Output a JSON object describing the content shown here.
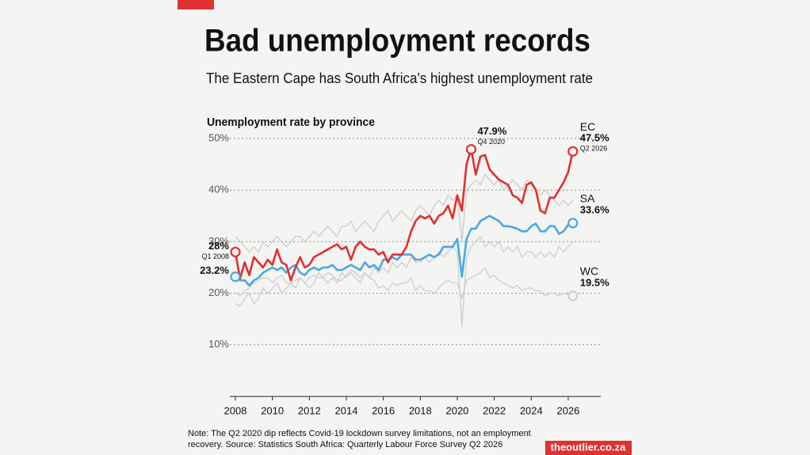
{
  "chart_data": {
    "type": "line",
    "title": "Bad unemployment records",
    "subtitle": "The Eastern Cape has South Africa's highest unemployment rate",
    "chart_title": "Unemployment rate by province",
    "note": [
      "Note: The Q2 2020 dip reflects Covid-19 lockdown survey limitations, not an employment",
      "recovery. Source: Statistics South Africa: Quarterly Labour Force Survey Q2 2026"
    ],
    "source_brand": "theoutlier.co.za",
    "x": [
      2008,
      2008.25,
      2008.5,
      2008.75,
      2009,
      2009.25,
      2009.5,
      2009.75,
      2010,
      2010.25,
      2010.5,
      2010.75,
      2011,
      2011.25,
      2011.5,
      2011.75,
      2012,
      2012.25,
      2012.5,
      2012.75,
      2013,
      2013.25,
      2013.5,
      2013.75,
      2014,
      2014.25,
      2014.5,
      2014.75,
      2015,
      2015.25,
      2015.5,
      2015.75,
      2016,
      2016.25,
      2016.5,
      2016.75,
      2017,
      2017.25,
      2017.5,
      2017.75,
      2018,
      2018.25,
      2018.5,
      2018.75,
      2019,
      2019.25,
      2019.5,
      2019.75,
      2020,
      2020.25,
      2020.5,
      2020.75,
      2021,
      2021.25,
      2021.5,
      2021.75,
      2022,
      2022.25,
      2022.5,
      2022.75,
      2023,
      2023.25,
      2023.5,
      2023.75,
      2024,
      2024.25,
      2024.5,
      2024.75,
      2025,
      2025.25,
      2025.5,
      2025.75,
      2026,
      2026.25
    ],
    "series": [
      {
        "color": "#cfcfcf",
        "values": [
          31,
          30,
          29,
          28,
          29,
          28,
          30,
          29,
          30,
          31,
          30,
          29,
          30,
          31,
          31,
          30,
          31,
          32,
          31,
          32,
          33,
          32,
          31,
          33,
          33,
          34,
          32,
          33,
          34,
          33,
          32,
          34,
          35,
          36,
          34,
          35,
          36,
          35,
          34,
          36,
          37,
          36,
          35,
          37,
          38,
          37,
          39,
          38,
          39,
          30,
          40,
          41,
          42,
          41,
          43,
          42,
          41,
          42,
          40,
          41,
          42,
          41,
          40,
          42,
          41,
          40,
          39,
          40,
          39,
          38,
          37,
          38,
          37,
          38
        ]
      },
      {
        "color": "#cfcfcf",
        "values": [
          18,
          17.5,
          19,
          20,
          18,
          19,
          21,
          20,
          21,
          22,
          20,
          21,
          22,
          21,
          23,
          22,
          21,
          22,
          24,
          23,
          22,
          23,
          22,
          24,
          23,
          24,
          23,
          22,
          24,
          23,
          25,
          24,
          25,
          24,
          26,
          25,
          26,
          25,
          27,
          26,
          26,
          27,
          26,
          27,
          28,
          27,
          28,
          29,
          28,
          13.5,
          27,
          29,
          30,
          31,
          29,
          30,
          29,
          30,
          28,
          29,
          28,
          29,
          27,
          28,
          28,
          27,
          28,
          27,
          28,
          27,
          29,
          28,
          29,
          30
        ]
      },
      {
        "name": "WC",
        "color": "#cfcfcf",
        "values": [
          20,
          19.5,
          20.5,
          21,
          22,
          22.5,
          23,
          23,
          22,
          23,
          23.5,
          22,
          22,
          22.5,
          23,
          22,
          23,
          23.5,
          23,
          23,
          24,
          23.5,
          22.5,
          22.5,
          23.5,
          24.5,
          24,
          23,
          24,
          23,
          22.5,
          21,
          21.5,
          20.5,
          22,
          21.5,
          22,
          22,
          23,
          20.5,
          21.5,
          20.5,
          20.5,
          20,
          21,
          22,
          22.5,
          22,
          22,
          19,
          22.5,
          23,
          23.5,
          24,
          25,
          23,
          23.5,
          22.5,
          22,
          21.5,
          21,
          21.5,
          20.5,
          21,
          21,
          20.5,
          20.5,
          19.5,
          20,
          20,
          19.5,
          20,
          19.8,
          19.5
        ]
      },
      {
        "name": "SA",
        "color": "#4aa8e0",
        "values": [
          23.2,
          22.5,
          22.5,
          21.5,
          22.5,
          23,
          24,
          24.5,
          25,
          24.5,
          25,
          24,
          25,
          25.5,
          24,
          23.5,
          24.5,
          25,
          24.5,
          25,
          25,
          25.5,
          24.5,
          24.5,
          25,
          25.5,
          25,
          24.5,
          26,
          25,
          25.5,
          24.5,
          26.5,
          26.5,
          27,
          26.5,
          27.5,
          27.5,
          27.5,
          26.5,
          26.5,
          27,
          27.5,
          27,
          27.5,
          29,
          29,
          29,
          30.5,
          23.2,
          30.5,
          32.5,
          32.5,
          34,
          34.5,
          35,
          34.5,
          34,
          33,
          33,
          32.8,
          32.5,
          32,
          32,
          33,
          33.5,
          32,
          32,
          33,
          33,
          31.5,
          32,
          33.3,
          33.6
        ]
      },
      {
        "name": "EC",
        "color": "#e03030",
        "values": [
          28,
          22.8,
          26,
          23.5,
          27,
          26,
          25,
          26.5,
          25.5,
          28.5,
          26,
          25.5,
          22.5,
          25,
          27,
          25,
          25.5,
          27,
          27.5,
          28,
          28.5,
          29,
          29.5,
          28.5,
          29,
          26.5,
          29,
          30,
          29,
          28.5,
          28.5,
          27.5,
          28,
          26,
          27.5,
          27.5,
          27.5,
          29,
          32,
          34,
          35,
          34.5,
          35,
          33.5,
          35,
          35.5,
          37,
          34.5,
          39,
          36,
          45,
          47.9,
          43,
          46.5,
          46.8,
          44,
          43,
          42,
          41.5,
          41,
          39,
          38.5,
          37.5,
          41,
          41.5,
          40,
          36,
          35.5,
          38.5,
          38.5,
          40,
          41.5,
          43.5,
          47.5
        ]
      }
    ],
    "annotations": [
      {
        "x": 2008,
        "value": 28,
        "label": "28%",
        "period": "Q1 2008",
        "color": "#e03030",
        "position": "left"
      },
      {
        "x": 2008,
        "value": 23.2,
        "label": "23.2%",
        "color": "#4aa8e0",
        "position": "left"
      },
      {
        "x": 2020.75,
        "value": 47.9,
        "label": "47.9%",
        "period": "Q4 2020",
        "color": "#e03030",
        "position": "above"
      },
      {
        "x": 2026.25,
        "value": 47.5,
        "label": "47.5%",
        "period": "Q2 2026",
        "color": "#e03030",
        "position": "right"
      },
      {
        "x": 2026.25,
        "value": 33.6,
        "label": "33.6%",
        "color": "#4aa8e0",
        "position": "right"
      },
      {
        "x": 2026.25,
        "value": 19.5,
        "label": "19.5%",
        "color": "#cfcfcf",
        "position": "right"
      }
    ],
    "xlim": [
      2007.7,
      2027.76
    ],
    "xticks": [
      2008,
      2010,
      2012,
      2014,
      2016,
      2018,
      2020,
      2022,
      2024,
      2026
    ],
    "ylim": [
      0,
      50
    ],
    "yticks": [
      {
        "value": 10,
        "label": "10%"
      },
      {
        "value": 20,
        "label": "20%"
      },
      {
        "value": 30,
        "label": "30%"
      },
      {
        "value": 40,
        "label": "40%"
      },
      {
        "value": 50,
        "label": "50%"
      }
    ],
    "grid": true
  }
}
